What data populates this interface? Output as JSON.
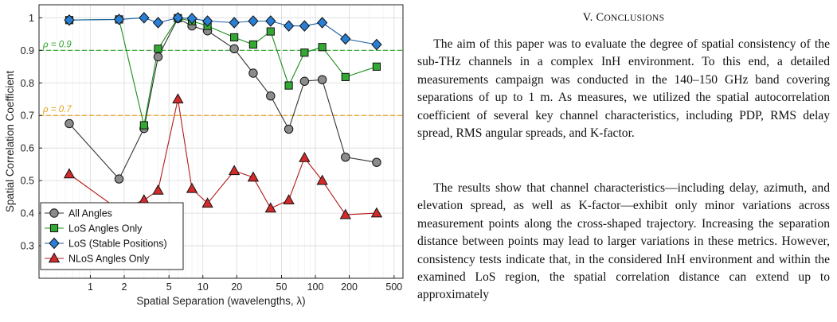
{
  "figure": {
    "chart_data": {
      "type": "line",
      "xlabel": "Spatial Separation (wavelengths, λ)",
      "ylabel": "Spatial Correlation Coefficient",
      "x_scale": "log",
      "xlim": [
        0.35,
        600
      ],
      "ylim": [
        0.2,
        1.04
      ],
      "x_ticks": [
        1,
        2,
        5,
        10,
        20,
        50,
        100,
        200,
        500
      ],
      "x_tick_labels": [
        "1",
        "2",
        "5",
        "10",
        "20",
        "50",
        "100",
        "200",
        "500"
      ],
      "y_ticks": [
        0.3,
        0.4,
        0.5,
        0.6,
        0.7,
        0.8,
        0.9,
        1.0
      ],
      "y_tick_labels": [
        "0.3",
        "0.4",
        "0.5",
        "0.6",
        "0.7",
        "0.8",
        "0.9",
        "1"
      ],
      "grid": true,
      "legend_position": "bottom-left",
      "thresholds": [
        {
          "label": "ρ = 0.9",
          "value": 0.9,
          "color": "#2ea62e"
        },
        {
          "label": "ρ = 0.7",
          "value": 0.7,
          "color": "#e6a21c"
        }
      ],
      "series": [
        {
          "name": "All Angles",
          "marker": "circle",
          "line_color": "#333333",
          "fill_color": "#8c8c8c",
          "x": [
            0.65,
            1.8,
            3,
            4,
            6,
            8,
            11,
            19,
            28,
            40,
            58,
            80,
            115,
            185,
            350
          ],
          "y": [
            0.675,
            0.505,
            0.66,
            0.88,
            0.998,
            0.975,
            0.96,
            0.905,
            0.83,
            0.76,
            0.658,
            0.805,
            0.81,
            0.572,
            0.556
          ]
        },
        {
          "name": "LoS Angles Only",
          "marker": "square",
          "line_color": "#1a8f1a",
          "fill_color": "#33a833",
          "x": [
            0.65,
            1.8,
            3,
            4,
            6,
            8,
            11,
            19,
            28,
            40,
            58,
            80,
            115,
            185,
            350
          ],
          "y": [
            0.993,
            0.995,
            0.67,
            0.905,
            0.999,
            0.99,
            0.975,
            0.94,
            0.918,
            0.958,
            0.792,
            0.893,
            0.91,
            0.818,
            0.85
          ]
        },
        {
          "name": "LoS (Stable Positions)",
          "marker": "diamond",
          "line_color": "#1a5fa8",
          "fill_color": "#2a7fd4",
          "x": [
            0.65,
            1.8,
            3,
            4,
            6,
            8,
            11,
            19,
            28,
            40,
            58,
            80,
            115,
            185,
            350
          ],
          "y": [
            0.993,
            0.995,
            1.0,
            0.985,
            1.0,
            0.998,
            0.99,
            0.985,
            0.99,
            0.99,
            0.975,
            0.975,
            0.985,
            0.935,
            0.918
          ]
        },
        {
          "name": "NLoS Angles Only",
          "marker": "triangle",
          "line_color": "#b31a1a",
          "fill_color": "#d42a2a",
          "x": [
            0.65,
            1.8,
            3,
            4,
            6,
            8,
            11,
            19,
            28,
            40,
            58,
            80,
            115,
            185,
            350
          ],
          "y": [
            0.52,
            0.41,
            0.44,
            0.47,
            0.75,
            0.475,
            0.43,
            0.53,
            0.51,
            0.415,
            0.44,
            0.57,
            0.5,
            0.395,
            0.4
          ]
        }
      ]
    }
  },
  "section": {
    "number": "V.",
    "title_initial": "C",
    "title_rest": "ONCLUSIONS"
  },
  "paragraphs": [
    "The aim of this paper was to evaluate the degree of spatial consistency of the sub-THz channels in a complex InH environment. To this end, a detailed measurements campaign was conducted in the 140–150 GHz band covering separations of up to 1 m. As measures, we utilized the spatial autocorrelation coefficient of several key channel characteristics, including PDP, RMS delay spread, RMS angular spreads, and K-factor.",
    "The results show that channel characteristics—including delay, azimuth, and elevation spread, as well as K-factor—exhibit only minor variations across measurement points along the cross-shaped trajectory. Increasing the separation distance between points may lead to larger variations in these metrics. However, consistency tests indicate that, in the considered InH environment and within the examined LoS region, the spatial correlation distance can extend up to approximately"
  ]
}
